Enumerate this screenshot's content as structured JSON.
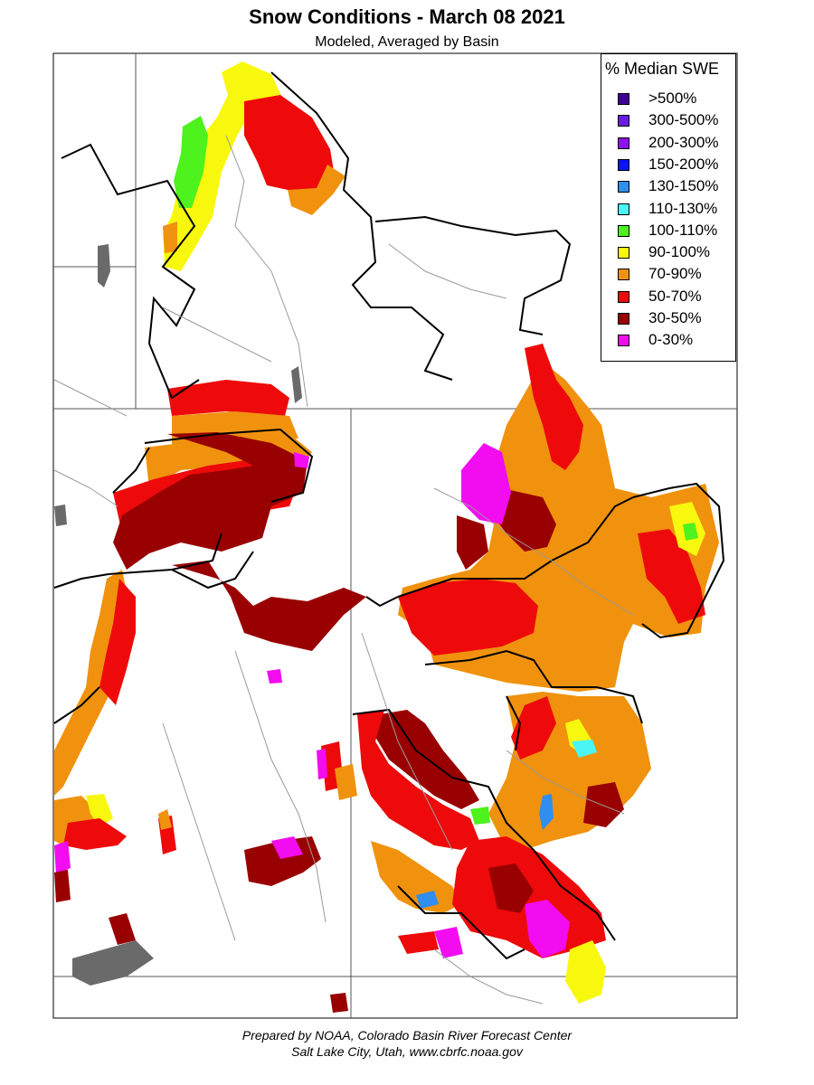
{
  "title": "Snow Conditions - March 08 2021",
  "subtitle": "Modeled, Averaged by Basin",
  "legend": {
    "title": "% Median SWE",
    "items": [
      {
        "label": ">500%",
        "color": "#3f0099"
      },
      {
        "label": "300-500%",
        "color": "#6a1be6"
      },
      {
        "label": "200-300%",
        "color": "#8f10f0"
      },
      {
        "label": "150-200%",
        "color": "#0a14f5"
      },
      {
        "label": "130-150%",
        "color": "#2f8ef0"
      },
      {
        "label": "110-130%",
        "color": "#4af5f5"
      },
      {
        "label": "100-110%",
        "color": "#4ef21c"
      },
      {
        "label": "90-100%",
        "color": "#f8f80e"
      },
      {
        "label": "70-90%",
        "color": "#f0920e"
      },
      {
        "label": "50-70%",
        "color": "#ee0a0a"
      },
      {
        "label": "30-50%",
        "color": "#990000"
      },
      {
        "label": "0-30%",
        "color": "#f20cf0"
      }
    ]
  },
  "footer": {
    "line1": "Prepared by NOAA, Colorado Basin River Forecast Center",
    "line2": "Salt Lake City, Utah, www.cbrfc.noaa.gov"
  }
}
